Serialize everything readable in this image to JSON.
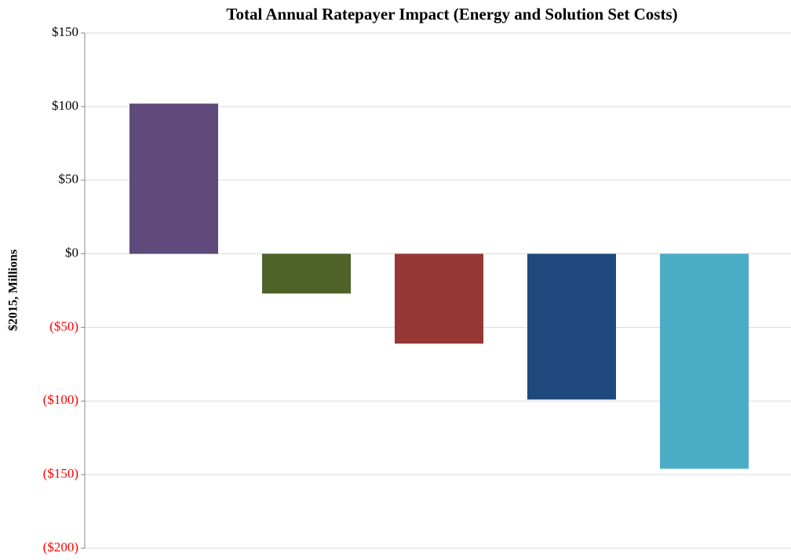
{
  "chart_data": {
    "type": "bar",
    "title": "Total Annual Ratepayer Impact (Energy and Solution Set Costs)",
    "y_label": "$2015, Millions",
    "categories": [
      null,
      null,
      null,
      null,
      null
    ],
    "values": [
      102,
      -27,
      -61,
      -99,
      -146
    ],
    "colors": [
      "#604a7b",
      "#4f6228",
      "#953735",
      "#1f497d",
      "#4bacc6"
    ],
    "ylim": [
      -200,
      150
    ],
    "yticks": [
      {
        "value": -200,
        "label": "($200)"
      },
      {
        "value": -150,
        "label": "($150)"
      },
      {
        "value": -100,
        "label": "($100)"
      },
      {
        "value": -50,
        "label": "($50)"
      },
      {
        "value": 0,
        "label": "$0"
      },
      {
        "value": 50,
        "label": "$50"
      },
      {
        "value": 100,
        "label": "$100"
      },
      {
        "value": 150,
        "label": "$150"
      }
    ],
    "negative_tick_color": "#ff0000",
    "grid": true
  }
}
